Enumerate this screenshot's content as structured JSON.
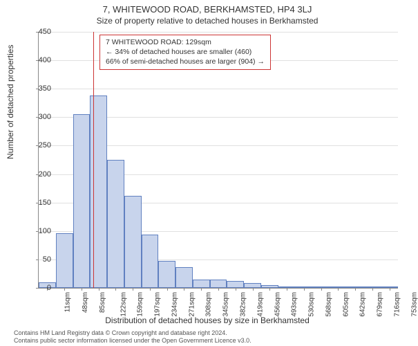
{
  "header": {
    "title": "7, WHITEWOOD ROAD, BERKHAMSTED, HP4 3LJ",
    "subtitle": "Size of property relative to detached houses in Berkhamsted"
  },
  "chart": {
    "type": "histogram",
    "ylabel": "Number of detached properties",
    "xlabel": "Distribution of detached houses by size in Berkhamsted",
    "ylim": [
      0,
      450
    ],
    "ytick_step": 50,
    "yticks": [
      0,
      50,
      100,
      150,
      200,
      250,
      300,
      350,
      400,
      450
    ],
    "xticks": [
      "11sqm",
      "48sqm",
      "85sqm",
      "122sqm",
      "159sqm",
      "197sqm",
      "234sqm",
      "271sqm",
      "308sqm",
      "345sqm",
      "382sqm",
      "419sqm",
      "456sqm",
      "493sqm",
      "530sqm",
      "568sqm",
      "605sqm",
      "642sqm",
      "679sqm",
      "716sqm",
      "753sqm"
    ],
    "values": [
      10,
      96,
      305,
      338,
      225,
      162,
      94,
      48,
      36,
      15,
      15,
      12,
      8,
      5,
      3,
      2,
      2,
      1,
      1,
      1,
      1
    ],
    "bar_fill": "#c8d4ec",
    "bar_stroke": "#6080c0",
    "grid_color": "#e0e0e0",
    "axis_color": "#888888",
    "background_color": "#ffffff",
    "bar_width_ratio": 1.0,
    "reference_line": {
      "x_index": 3.2,
      "color": "#cc3333"
    },
    "annotation": {
      "line1": "7 WHITEWOOD ROAD: 129sqm",
      "line2": "← 34% of detached houses are smaller (460)",
      "line3": "66% of semi-detached houses are larger (904) →",
      "border_color": "#cc3333",
      "text_color": "#333333",
      "bg_color": "#ffffff"
    }
  },
  "footer": {
    "line1": "Contains HM Land Registry data © Crown copyright and database right 2024.",
    "line2": "Contains public sector information licensed under the Open Government Licence v3.0."
  }
}
